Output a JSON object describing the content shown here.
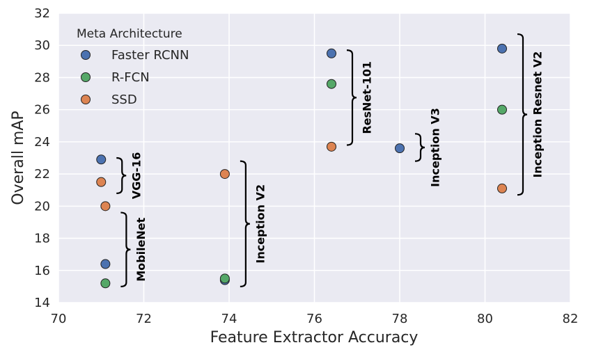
{
  "chart_data": {
    "type": "scatter",
    "title": "",
    "xlabel": "Feature Extractor Accuracy",
    "ylabel": "Overall mAP",
    "xlim": [
      70,
      82
    ],
    "ylim": [
      14,
      32
    ],
    "xticks": [
      "70",
      "72",
      "74",
      "76",
      "78",
      "80",
      "82"
    ],
    "yticks": [
      "14",
      "16",
      "18",
      "20",
      "22",
      "24",
      "26",
      "28",
      "30",
      "32"
    ],
    "grid": true,
    "legend": {
      "title": "Meta Architecture",
      "position": "top-left"
    },
    "series": [
      {
        "name": "Faster RCNN",
        "color": "#4c72b0",
        "points": [
          {
            "x": 71.0,
            "y": 22.9
          },
          {
            "x": 71.1,
            "y": 16.4
          },
          {
            "x": 73.9,
            "y": 15.4
          },
          {
            "x": 76.4,
            "y": 29.5
          },
          {
            "x": 78.0,
            "y": 23.6
          },
          {
            "x": 80.4,
            "y": 29.8
          }
        ]
      },
      {
        "name": "R-FCN",
        "color": "#55a868",
        "points": [
          {
            "x": 71.1,
            "y": 15.2
          },
          {
            "x": 73.9,
            "y": 15.5
          },
          {
            "x": 76.4,
            "y": 27.6
          },
          {
            "x": 80.4,
            "y": 26.0
          }
        ]
      },
      {
        "name": "SSD",
        "color": "#dd8452",
        "points": [
          {
            "x": 71.0,
            "y": 21.5
          },
          {
            "x": 71.1,
            "y": 20.0
          },
          {
            "x": 73.9,
            "y": 22.0
          },
          {
            "x": 76.4,
            "y": 23.7
          },
          {
            "x": 80.4,
            "y": 21.1
          }
        ]
      }
    ],
    "groups": [
      {
        "label": "VGG-16",
        "x": 71.0,
        "y_range": [
          20.8,
          23.0
        ]
      },
      {
        "label": "MobileNet",
        "x": 71.1,
        "y_range": [
          15.0,
          19.6
        ]
      },
      {
        "label": "Inception V2",
        "x": 73.9,
        "y_range": [
          15.0,
          22.8
        ]
      },
      {
        "label": "ResNet-101",
        "x": 76.4,
        "y_range": [
          23.8,
          29.7
        ]
      },
      {
        "label": "Inception V3",
        "x": 78.0,
        "y_range": [
          22.8,
          24.5
        ]
      },
      {
        "label": "Inception Resnet V2",
        "x": 80.4,
        "y_range": [
          20.7,
          30.7
        ]
      }
    ]
  }
}
